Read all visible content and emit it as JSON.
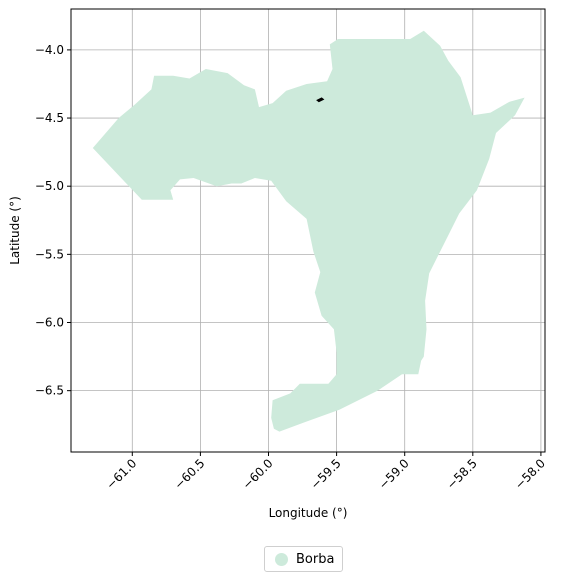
{
  "chart_data": {
    "type": "map",
    "xlabel": "Longitude (°)",
    "ylabel": "Latitude (°)",
    "xlim": [
      -61.45,
      -57.97
    ],
    "ylim": [
      -6.95,
      -3.7
    ],
    "x_ticks": [
      -61.0,
      -60.5,
      -60.0,
      -59.5,
      -59.0,
      -58.5,
      -58.0
    ],
    "x_tick_labels": [
      "−61.0",
      "−60.5",
      "−60.0",
      "−59.5",
      "−59.0",
      "−58.5",
      "−58.0"
    ],
    "y_ticks": [
      -4.0,
      -4.5,
      -5.0,
      -5.5,
      -6.0,
      -6.5
    ],
    "y_tick_labels": [
      "−4.0",
      "−4.5",
      "−5.0",
      "−5.5",
      "−6.0",
      "−6.5"
    ],
    "grid": true,
    "fill_color": "#cdeadb",
    "legend_position": "bottom-center",
    "legend": [
      {
        "label": "Borba",
        "color": "#cdeadb"
      }
    ],
    "region": {
      "name": "Borba",
      "outline": [
        [
          -61.29,
          -4.72
        ],
        [
          -61.1,
          -4.5
        ],
        [
          -60.98,
          -4.4
        ],
        [
          -60.86,
          -4.29
        ],
        [
          -60.84,
          -4.19
        ],
        [
          -60.7,
          -4.19
        ],
        [
          -60.58,
          -4.21
        ],
        [
          -60.46,
          -4.14
        ],
        [
          -60.3,
          -4.17
        ],
        [
          -60.18,
          -4.26
        ],
        [
          -60.1,
          -4.29
        ],
        [
          -60.07,
          -4.42
        ],
        [
          -59.97,
          -4.39
        ],
        [
          -59.87,
          -4.3
        ],
        [
          -59.72,
          -4.25
        ],
        [
          -59.57,
          -4.23
        ],
        [
          -59.53,
          -4.14
        ],
        [
          -59.55,
          -3.96
        ],
        [
          -59.49,
          -3.92
        ],
        [
          -59.2,
          -3.92
        ],
        [
          -59.05,
          -3.92
        ],
        [
          -58.96,
          -3.92
        ],
        [
          -58.86,
          -3.86
        ],
        [
          -58.74,
          -3.97
        ],
        [
          -58.68,
          -4.08
        ],
        [
          -58.59,
          -4.2
        ],
        [
          -58.5,
          -4.48
        ],
        [
          -58.37,
          -4.46
        ],
        [
          -58.23,
          -4.38
        ],
        [
          -58.12,
          -4.35
        ],
        [
          -58.19,
          -4.48
        ],
        [
          -58.33,
          -4.61
        ],
        [
          -58.38,
          -4.8
        ],
        [
          -58.47,
          -5.03
        ],
        [
          -58.6,
          -5.2
        ],
        [
          -58.67,
          -5.34
        ],
        [
          -58.74,
          -5.48
        ],
        [
          -58.82,
          -5.64
        ],
        [
          -58.85,
          -5.84
        ],
        [
          -58.84,
          -6.05
        ],
        [
          -58.86,
          -6.25
        ],
        [
          -58.88,
          -6.28
        ],
        [
          -58.9,
          -6.38
        ],
        [
          -59.02,
          -6.38
        ],
        [
          -59.2,
          -6.5
        ],
        [
          -59.48,
          -6.64
        ],
        [
          -59.73,
          -6.73
        ],
        [
          -59.92,
          -6.8
        ],
        [
          -59.96,
          -6.78
        ],
        [
          -59.98,
          -6.7
        ],
        [
          -59.97,
          -6.57
        ],
        [
          -59.84,
          -6.52
        ],
        [
          -59.77,
          -6.45
        ],
        [
          -59.56,
          -6.45
        ],
        [
          -59.5,
          -6.38
        ],
        [
          -59.5,
          -6.22
        ],
        [
          -59.52,
          -6.05
        ],
        [
          -59.61,
          -5.95
        ],
        [
          -59.66,
          -5.78
        ],
        [
          -59.62,
          -5.63
        ],
        [
          -59.67,
          -5.48
        ],
        [
          -59.72,
          -5.24
        ],
        [
          -59.87,
          -5.11
        ],
        [
          -59.98,
          -4.96
        ],
        [
          -60.1,
          -4.94
        ],
        [
          -60.2,
          -4.98
        ],
        [
          -60.27,
          -4.98
        ],
        [
          -60.38,
          -5.0
        ],
        [
          -60.55,
          -4.94
        ],
        [
          -60.65,
          -4.95
        ],
        [
          -60.72,
          -5.03
        ],
        [
          -60.7,
          -5.1
        ],
        [
          -60.93,
          -5.1
        ]
      ],
      "marker": [
        [
          -59.64,
          -4.37
        ],
        [
          -59.61,
          -4.355
        ],
        [
          -59.6,
          -4.363
        ],
        [
          -59.63,
          -4.378
        ]
      ]
    }
  }
}
